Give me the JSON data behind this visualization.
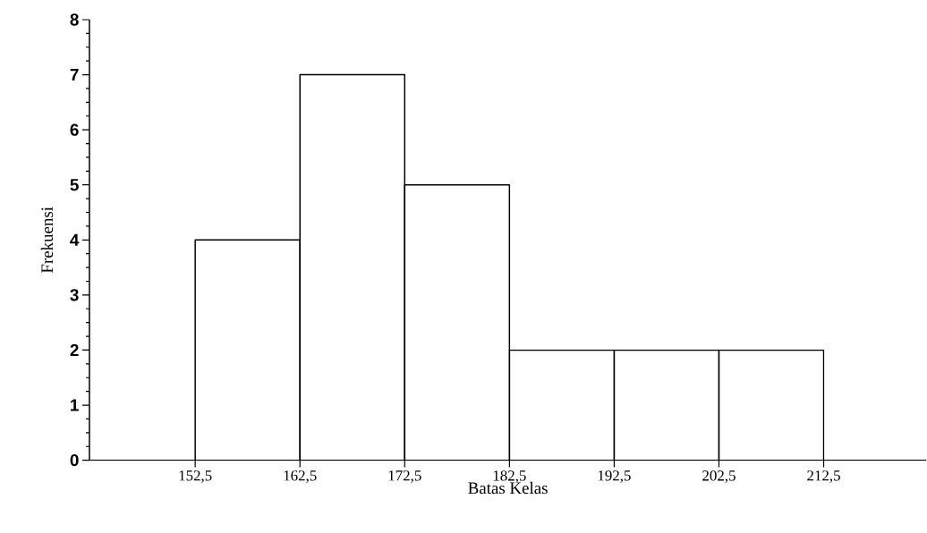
{
  "chart_data": {
    "type": "histogram",
    "xlabel": "Batas Kelas",
    "ylabel": "Frekuensi",
    "bins": [
      152.5,
      162.5,
      172.5,
      182.5,
      192.5,
      202.5,
      212.5
    ],
    "values": [
      4,
      7,
      5,
      2,
      2,
      2
    ],
    "xlim": [
      142.4,
      222.3
    ],
    "xticks": [
      {
        "value": 152.5,
        "label": "152,5"
      },
      {
        "value": 162.5,
        "label": "162,5"
      },
      {
        "value": 172.5,
        "label": "172,5"
      },
      {
        "value": 182.5,
        "label": "182,5"
      },
      {
        "value": 192.5,
        "label": "192,5"
      },
      {
        "value": 202.5,
        "label": "202,5"
      },
      {
        "value": 212.5,
        "label": "212,5"
      }
    ],
    "ylim": [
      0,
      8
    ],
    "yticks": [
      0,
      1,
      2,
      3,
      4,
      5,
      6,
      7,
      8
    ],
    "grid": false
  }
}
